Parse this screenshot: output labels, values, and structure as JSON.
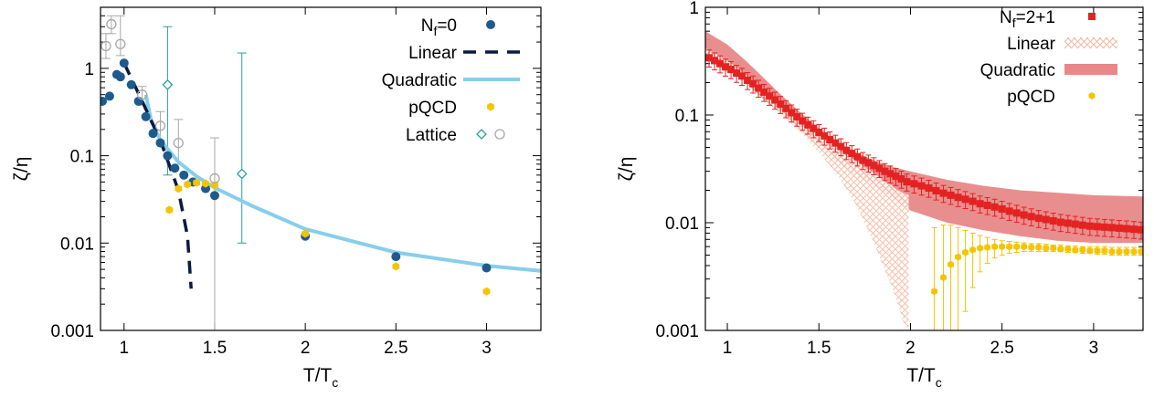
{
  "colors": {
    "nf0": "#1f5a8c",
    "linear_left": "#0b1a40",
    "quadratic_left": "#87ceeb",
    "pqcd": "#f5c400",
    "lattice_diamond": "#2aa198",
    "lattice_circle": "#a8a8a8",
    "nf21": "#e32222",
    "linear_right": "#f8c8b4",
    "quadratic_right": "#e88888"
  },
  "chart_data": [
    {
      "type": "scatter",
      "yscale": "log",
      "xlabel_main": "T/T",
      "xlabel_sub": "c",
      "ylabel": "ζ/η",
      "xlim": [
        0.87,
        3.3
      ],
      "ylim": [
        0.001,
        5
      ],
      "xticks": [
        1,
        1.5,
        2,
        2.5,
        3
      ],
      "xtick_labels": [
        "1",
        "1.5",
        "2",
        "2.5",
        "3"
      ],
      "yticks": [
        0.001,
        0.01,
        0.1,
        1
      ],
      "ytick_labels": [
        "0.001",
        "0.01",
        "0.1",
        "1"
      ],
      "grid": false,
      "legend_position": "top-right",
      "legend": [
        {
          "label_main": "N",
          "label_sub": "f",
          "label_rest": "=0",
          "kind": "dot",
          "color_key": "nf0"
        },
        {
          "label_main": "Linear",
          "label_sub": "",
          "label_rest": "",
          "kind": "dash",
          "color_key": "linear_left"
        },
        {
          "label_main": "Quadratic",
          "label_sub": "",
          "label_rest": "",
          "kind": "line",
          "color_key": "quadratic_left"
        },
        {
          "label_main": "pQCD",
          "label_sub": "",
          "label_rest": "",
          "kind": "hex",
          "color_key": "pqcd"
        },
        {
          "label_main": "Lattice",
          "label_sub": "",
          "label_rest": "",
          "kind": "lattice",
          "color_key": "lattice_diamond"
        }
      ],
      "series": [
        {
          "id": "nf0",
          "x": [
            0.88,
            0.92,
            0.96,
            0.98,
            1.0,
            1.04,
            1.08,
            1.12,
            1.16,
            1.2,
            1.24,
            1.28,
            1.33,
            1.38,
            1.45,
            1.5,
            2.0,
            2.5,
            3.0
          ],
          "y": [
            0.42,
            0.48,
            0.85,
            0.8,
            1.15,
            0.65,
            0.42,
            0.28,
            0.18,
            0.14,
            0.1,
            0.072,
            0.06,
            0.05,
            0.042,
            0.035,
            0.012,
            0.007,
            0.0052
          ]
        },
        {
          "id": "linear",
          "x": [
            1.0,
            1.1,
            1.2,
            1.3,
            1.35,
            1.37
          ],
          "y": [
            1.15,
            0.42,
            0.15,
            0.04,
            0.012,
            0.003
          ]
        },
        {
          "id": "quadratic",
          "x": [
            1.12,
            1.15,
            1.2,
            1.3,
            1.4,
            1.5,
            1.7,
            2.0,
            2.5,
            3.0,
            3.3
          ],
          "y": [
            0.5,
            0.25,
            0.15,
            0.085,
            0.058,
            0.043,
            0.027,
            0.0145,
            0.0078,
            0.0055,
            0.0048
          ]
        },
        {
          "id": "pqcd",
          "x": [
            1.25,
            1.3,
            1.35,
            1.4,
            1.45,
            1.5,
            2.0,
            2.5,
            3.0
          ],
          "y": [
            0.024,
            0.042,
            0.047,
            0.049,
            0.048,
            0.046,
            0.0128,
            0.0054,
            0.0028
          ]
        },
        {
          "id": "lattice_circle",
          "x": [
            0.9,
            0.93,
            0.98,
            1.1,
            1.2,
            1.3,
            1.5
          ],
          "y": [
            1.8,
            3.2,
            1.9,
            0.5,
            0.22,
            0.14,
            0.055
          ],
          "ylo": [
            1.3,
            2.5,
            1.4,
            0.38,
            0.15,
            0.08,
            0.001
          ],
          "yhi": [
            2.5,
            4.0,
            4.0,
            0.62,
            0.32,
            0.26,
            0.16
          ]
        },
        {
          "id": "lattice_diamond",
          "x": [
            1.24,
            1.65
          ],
          "y": [
            0.65,
            0.062
          ],
          "ylo": [
            0.06,
            0.01
          ],
          "yhi": [
            3.0,
            1.5
          ]
        }
      ]
    },
    {
      "type": "scatter",
      "yscale": "log",
      "xlabel_main": "T/T",
      "xlabel_sub": "c",
      "ylabel": "ζ/η",
      "xlim": [
        0.88,
        3.27
      ],
      "ylim": [
        0.001,
        1
      ],
      "xticks": [
        1,
        1.5,
        2,
        2.5,
        3
      ],
      "xtick_labels": [
        "1",
        "1.5",
        "2",
        "2.5",
        "3"
      ],
      "yticks": [
        0.001,
        0.01,
        0.1,
        1
      ],
      "ytick_labels": [
        "0.001",
        "0.01",
        "0.1",
        "1"
      ],
      "grid": false,
      "legend_position": "top-right",
      "legend": [
        {
          "label_main": "N",
          "label_sub": "f",
          "label_rest": "=2+1",
          "kind": "square",
          "color_key": "nf21"
        },
        {
          "label_main": "Linear",
          "label_sub": "",
          "label_rest": "",
          "kind": "hatch",
          "color_key": "linear_right"
        },
        {
          "label_main": "Quadratic",
          "label_sub": "",
          "label_rest": "",
          "kind": "band",
          "color_key": "quadratic_right"
        },
        {
          "label_main": "pQCD",
          "label_sub": "",
          "label_rest": "",
          "kind": "hex",
          "color_key": "pqcd"
        }
      ],
      "nf21_points": {
        "x": [
          0.9,
          0.93,
          0.96,
          0.99,
          1.02,
          1.05,
          1.08,
          1.11,
          1.14,
          1.17,
          1.2,
          1.23,
          1.26,
          1.29,
          1.32,
          1.35,
          1.38,
          1.41,
          1.44,
          1.47,
          1.5,
          1.53,
          1.56,
          1.59,
          1.62,
          1.65,
          1.68,
          1.71,
          1.74,
          1.77,
          1.8,
          1.83,
          1.86,
          1.89,
          1.92,
          1.95,
          1.98,
          2.02,
          2.06,
          2.1,
          2.14,
          2.18,
          2.22,
          2.26,
          2.3,
          2.34,
          2.38,
          2.42,
          2.46,
          2.5,
          2.54,
          2.58,
          2.62,
          2.66,
          2.7,
          2.74,
          2.78,
          2.82,
          2.86,
          2.9,
          2.94,
          2.98,
          3.02,
          3.06,
          3.1,
          3.14,
          3.18,
          3.22,
          3.26
        ],
        "y": [
          0.34,
          0.32,
          0.3,
          0.28,
          0.265,
          0.245,
          0.23,
          0.21,
          0.195,
          0.178,
          0.163,
          0.15,
          0.138,
          0.126,
          0.115,
          0.105,
          0.096,
          0.088,
          0.081,
          0.075,
          0.069,
          0.064,
          0.059,
          0.055,
          0.051,
          0.047,
          0.044,
          0.041,
          0.038,
          0.036,
          0.034,
          0.032,
          0.03,
          0.0285,
          0.027,
          0.0255,
          0.024,
          0.023,
          0.022,
          0.021,
          0.0198,
          0.0188,
          0.018,
          0.0172,
          0.0165,
          0.0158,
          0.015,
          0.0145,
          0.014,
          0.0134,
          0.0128,
          0.0123,
          0.0118,
          0.0114,
          0.011,
          0.0107,
          0.0104,
          0.0101,
          0.0099,
          0.0097,
          0.0095,
          0.0093,
          0.0092,
          0.0091,
          0.009,
          0.0089,
          0.0088,
          0.0087,
          0.0086
        ],
        "rel_err": 0.18
      },
      "pqcd_points": {
        "x": [
          2.13,
          2.18,
          2.22,
          2.26,
          2.3,
          2.34,
          2.38,
          2.42,
          2.46,
          2.5,
          2.54,
          2.58,
          2.62,
          2.66,
          2.7,
          2.74,
          2.78,
          2.82,
          2.86,
          2.9,
          2.94,
          2.98,
          3.02,
          3.06,
          3.1,
          3.14,
          3.18,
          3.22,
          3.26
        ],
        "y": [
          0.0023,
          0.0031,
          0.0041,
          0.0048,
          0.0053,
          0.0056,
          0.0058,
          0.0059,
          0.006,
          0.006,
          0.006,
          0.006,
          0.006,
          0.0059,
          0.0059,
          0.0058,
          0.0058,
          0.0057,
          0.0057,
          0.0056,
          0.0056,
          0.0055,
          0.0055,
          0.0055,
          0.0054,
          0.0054,
          0.0054,
          0.0054,
          0.0054
        ],
        "ylo": [
          0.001,
          0.001,
          0.001,
          0.001,
          0.0015,
          0.0025,
          0.0035,
          0.0042,
          0.0047,
          0.005,
          0.0052,
          0.0053,
          0.0054,
          0.0054,
          0.0054,
          0.0054,
          0.0054,
          0.0054,
          0.0053,
          0.0053,
          0.0052,
          0.0052,
          0.0051,
          0.0051,
          0.005,
          0.005,
          0.005,
          0.005,
          0.005
        ],
        "yhi": [
          0.009,
          0.0095,
          0.0095,
          0.009,
          0.0085,
          0.008,
          0.0076,
          0.0073,
          0.007,
          0.0068,
          0.0067,
          0.0066,
          0.0065,
          0.0064,
          0.0064,
          0.0063,
          0.0062,
          0.0062,
          0.0061,
          0.0061,
          0.006,
          0.006,
          0.006,
          0.006,
          0.0059,
          0.0059,
          0.0059,
          0.0059,
          0.0059
        ]
      },
      "quadratic_band": {
        "x": [
          0.88,
          1.0,
          1.1,
          1.2,
          1.3,
          1.4,
          1.5,
          1.6,
          1.7,
          1.8,
          1.9,
          2.0,
          2.2,
          2.4,
          2.6,
          2.8,
          3.0,
          3.27
        ],
        "lo": [
          0.38,
          0.28,
          0.2,
          0.14,
          0.1,
          0.07,
          0.05,
          0.037,
          0.028,
          0.022,
          0.017,
          0.013,
          0.01,
          0.0085,
          0.0075,
          0.0068,
          0.0065,
          0.0065
        ],
        "hi": [
          0.6,
          0.45,
          0.32,
          0.22,
          0.15,
          0.105,
          0.075,
          0.056,
          0.045,
          0.038,
          0.033,
          0.03,
          0.025,
          0.022,
          0.02,
          0.019,
          0.018,
          0.0175
        ]
      },
      "linear_band": {
        "x": [
          0.88,
          1.0,
          1.1,
          1.2,
          1.3,
          1.4,
          1.5,
          1.6,
          1.7,
          1.75,
          1.8,
          1.85,
          1.9,
          1.93,
          1.96,
          1.99
        ],
        "lo": [
          0.34,
          0.27,
          0.2,
          0.145,
          0.1,
          0.07,
          0.045,
          0.028,
          0.015,
          0.01,
          0.0065,
          0.004,
          0.0025,
          0.0018,
          0.0012,
          0.001
        ],
        "hi": [
          0.42,
          0.32,
          0.24,
          0.175,
          0.125,
          0.09,
          0.066,
          0.05,
          0.038,
          0.033,
          0.029,
          0.025,
          0.022,
          0.02,
          0.019,
          0.018
        ]
      }
    }
  ]
}
